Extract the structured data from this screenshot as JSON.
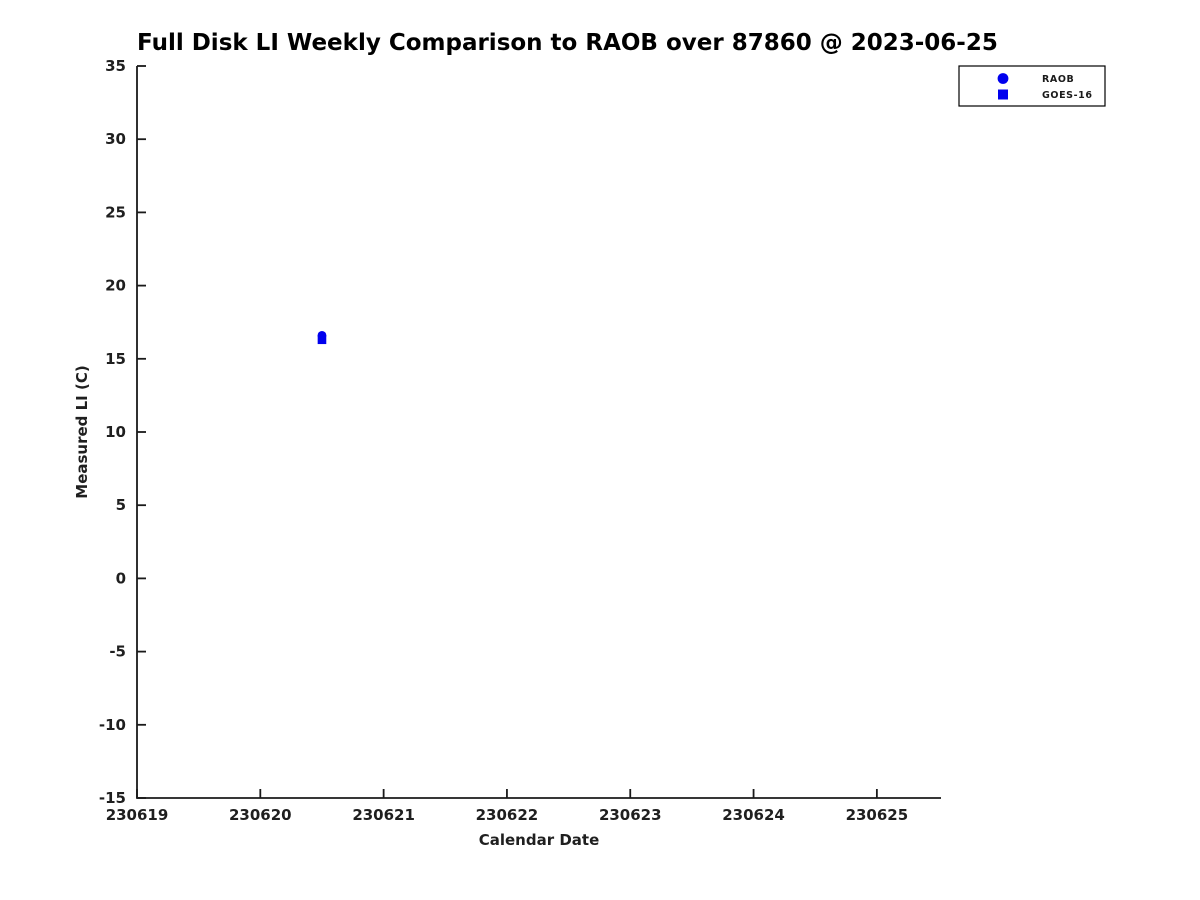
{
  "chart_data": {
    "type": "scatter",
    "title": "Full Disk LI Weekly Comparison to RAOB over 87860 @ 2023-06-25",
    "xlabel": "Calendar Date",
    "ylabel": "Measured LI (C)",
    "xlim": [
      230619,
      230625.52
    ],
    "ylim": [
      -15,
      35
    ],
    "xticks": [
      230619,
      230620,
      230621,
      230622,
      230623,
      230624,
      230625
    ],
    "xtick_labels": [
      "230619",
      "230620",
      "230621",
      "230622",
      "230623",
      "230624",
      "230625"
    ],
    "yticks": [
      -15,
      -10,
      -5,
      0,
      5,
      10,
      15,
      20,
      25,
      30,
      35
    ],
    "ytick_labels": [
      "-15",
      "-10",
      "-5",
      "0",
      "5",
      "10",
      "15",
      "20",
      "25",
      "30",
      "35"
    ],
    "grid": false,
    "legend_position": "upper-right-outside-axes",
    "series": [
      {
        "name": "RAOB",
        "marker": "circle",
        "color": "#0000EE",
        "points": [
          {
            "x": 230620.5,
            "y": 16.6
          }
        ]
      },
      {
        "name": "GOES-16",
        "marker": "square",
        "color": "#0000EE",
        "points": [
          {
            "x": 230620.5,
            "y": 16.3
          }
        ]
      }
    ],
    "axis_color": "#1a1a1a",
    "text_color": "#1f1f1f"
  }
}
